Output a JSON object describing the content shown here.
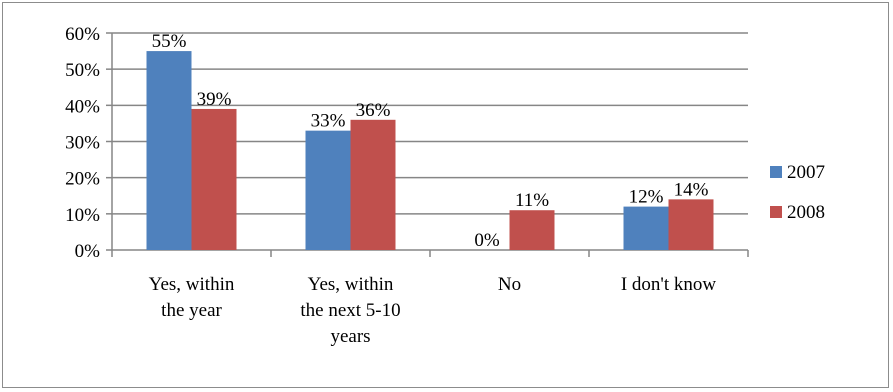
{
  "chart_data": {
    "type": "bar",
    "categories": [
      [
        "Yes, within",
        "the year"
      ],
      [
        "Yes, within",
        "the next 5-10",
        "years"
      ],
      [
        "No"
      ],
      [
        "I don't know"
      ]
    ],
    "series": [
      {
        "name": "2007",
        "values": [
          55,
          33,
          0,
          12
        ],
        "labels": [
          "55%",
          "33%",
          "0%",
          "12%"
        ],
        "color": "#4f81bd"
      },
      {
        "name": "2008",
        "values": [
          39,
          36,
          11,
          14
        ],
        "labels": [
          "39%",
          "36%",
          "11%",
          "14%"
        ],
        "color": "#c0504d"
      }
    ],
    "yticks": [
      "0%",
      "10%",
      "20%",
      "30%",
      "40%",
      "50%",
      "60%"
    ],
    "ylim": [
      0,
      60
    ],
    "grid": true,
    "legend_position": "right"
  }
}
